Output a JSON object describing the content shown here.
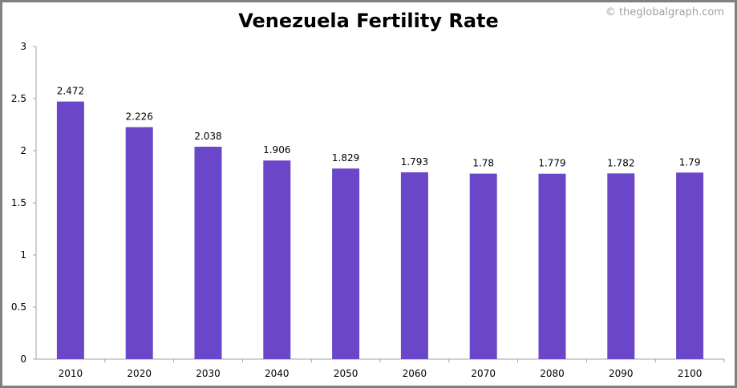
{
  "chart_data": {
    "type": "bar",
    "title": "Venezuela Fertility Rate",
    "watermark": "© theglobalgraph.com",
    "categories": [
      "2010",
      "2020",
      "2030",
      "2040",
      "2050",
      "2060",
      "2070",
      "2080",
      "2090",
      "2100"
    ],
    "values": [
      2.472,
      2.226,
      2.038,
      1.906,
      1.829,
      1.793,
      1.78,
      1.779,
      1.782,
      1.79
    ],
    "data_labels": [
      "2.472",
      "2.226",
      "2.038",
      "1.906",
      "1.829",
      "1.793",
      "1.78",
      "1.779",
      "1.782",
      "1.79"
    ],
    "ylim": [
      0,
      3
    ],
    "yticks": [
      "0",
      "0.5",
      "1",
      "1.5",
      "2",
      "2.5",
      "3"
    ],
    "xlabel": "",
    "ylabel": "",
    "grid": false,
    "legend": "none",
    "bar_color": "#6a46c8"
  }
}
